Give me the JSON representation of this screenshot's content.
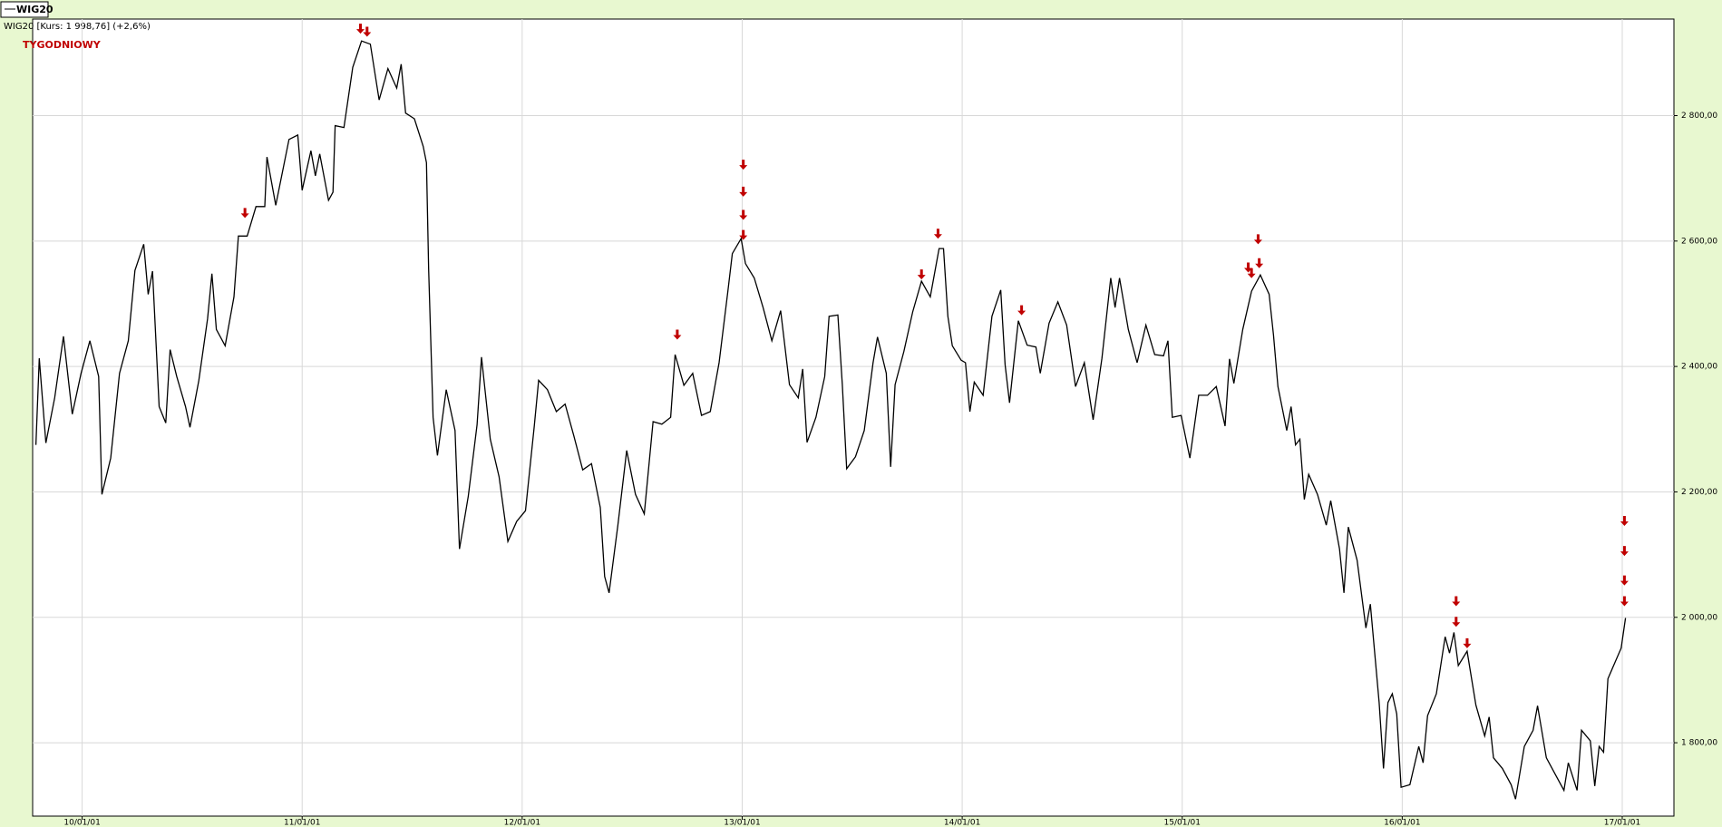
{
  "chart_data": {
    "type": "line",
    "legend_label": "WIG20",
    "subtitle": "WIG20 [Kurs: 1 998,76] (+2,6%)",
    "annotation": "TYGODNIOWY",
    "grid": true,
    "xlim": [
      2009.775,
      2017.235
    ],
    "ylim": [
      1683,
      2954
    ],
    "xticks": [
      {
        "value": 2010,
        "label": "10/01/01"
      },
      {
        "value": 2011,
        "label": "11/01/01"
      },
      {
        "value": 2012,
        "label": "12/01/01"
      },
      {
        "value": 2013,
        "label": "13/01/01"
      },
      {
        "value": 2014,
        "label": "14/01/01"
      },
      {
        "value": 2015,
        "label": "15/01/01"
      },
      {
        "value": 2016,
        "label": "16/01/01"
      },
      {
        "value": 2017,
        "label": "17/01/01"
      }
    ],
    "yticks": [
      {
        "value": 1800,
        "label": "1 800,00"
      },
      {
        "value": 2000,
        "label": "2 000,00"
      },
      {
        "value": 2200,
        "label": "2 200,00"
      },
      {
        "value": 2400,
        "label": "2 400,00"
      },
      {
        "value": 2600,
        "label": "2 600,00"
      },
      {
        "value": 2800,
        "label": "2 800,00"
      }
    ],
    "x": [
      2009.79,
      2009.805,
      2009.835,
      2009.875,
      2009.915,
      2009.955,
      2009.995,
      2010.035,
      2010.075,
      2010.09,
      2010.13,
      2010.17,
      2010.21,
      2010.24,
      2010.28,
      2010.3,
      2010.32,
      2010.35,
      2010.38,
      2010.4,
      2010.43,
      2010.47,
      2010.49,
      2010.53,
      2010.57,
      2010.59,
      2010.61,
      2010.65,
      2010.69,
      2010.71,
      2010.75,
      2010.79,
      2010.83,
      2010.84,
      2010.88,
      2010.94,
      2010.98,
      2011.0,
      2011.04,
      2011.06,
      2011.08,
      2011.12,
      2011.14,
      2011.15,
      2011.19,
      2011.23,
      2011.27,
      2011.31,
      2011.35,
      2011.39,
      2011.43,
      2011.45,
      2011.47,
      2011.51,
      2011.55,
      2011.565,
      2011.575,
      2011.595,
      2011.615,
      2011.655,
      2011.695,
      2011.715,
      2011.755,
      2011.795,
      2011.815,
      2011.855,
      2011.895,
      2011.935,
      2011.975,
      2012.015,
      2012.055,
      2012.075,
      2012.115,
      2012.155,
      2012.195,
      2012.235,
      2012.275,
      2012.315,
      2012.355,
      2012.375,
      2012.395,
      2012.435,
      2012.475,
      2012.515,
      2012.555,
      2012.595,
      2012.635,
      2012.675,
      2012.695,
      2012.735,
      2012.775,
      2012.815,
      2012.855,
      2012.895,
      2012.935,
      2012.955,
      2012.995,
      2013.015,
      2013.055,
      2013.095,
      2013.135,
      2013.175,
      2013.215,
      2013.255,
      2013.275,
      2013.295,
      2013.335,
      2013.375,
      2013.395,
      2013.435,
      2013.455,
      2013.475,
      2013.515,
      2013.555,
      2013.595,
      2013.615,
      2013.655,
      2013.675,
      2013.695,
      2013.735,
      2013.775,
      2013.815,
      2013.855,
      2013.895,
      2013.915,
      2013.935,
      2013.955,
      2013.995,
      2014.015,
      2014.035,
      2014.055,
      2014.095,
      2014.135,
      2014.175,
      2014.195,
      2014.215,
      2014.255,
      2014.295,
      2014.335,
      2014.355,
      2014.395,
      2014.435,
      2014.475,
      2014.515,
      2014.555,
      2014.595,
      2014.635,
      2014.675,
      2014.695,
      2014.715,
      2014.755,
      2014.795,
      2014.835,
      2014.875,
      2014.915,
      2014.935,
      2014.955,
      2014.995,
      2015.035,
      2015.075,
      2015.115,
      2015.155,
      2015.195,
      2015.215,
      2015.235,
      2015.275,
      2015.315,
      2015.355,
      2015.395,
      2015.415,
      2015.435,
      2015.475,
      2015.495,
      2015.515,
      2015.535,
      2015.555,
      2015.575,
      2015.615,
      2015.655,
      2015.675,
      2015.715,
      2015.735,
      2015.755,
      2015.795,
      2015.835,
      2015.855,
      2015.895,
      2015.915,
      2015.935,
      2015.955,
      2015.975,
      2015.995,
      2016.035,
      2016.075,
      2016.095,
      2016.115,
      2016.155,
      2016.195,
      2016.215,
      2016.235,
      2016.255,
      2016.295,
      2016.335,
      2016.375,
      2016.395,
      2016.415,
      2016.455,
      2016.495,
      2016.515,
      2016.555,
      2016.595,
      2016.615,
      2016.655,
      2016.695,
      2016.735,
      2016.755,
      2016.795,
      2016.815,
      2016.855,
      2016.875,
      2016.895,
      2016.915,
      2016.935,
      2016.995,
      2017.015
    ],
    "series": [
      {
        "name": "WIG20",
        "color": "#000000",
        "values": [
          2275,
          2413,
          2278,
          2350,
          2448,
          2324,
          2389,
          2441,
          2384,
          2196,
          2254,
          2389,
          2441,
          2553,
          2595,
          2515,
          2552,
          2336,
          2310,
          2427,
          2384,
          2336,
          2303,
          2377,
          2476,
          2548,
          2459,
          2433,
          2511,
          2608,
          2608,
          2655,
          2655,
          2734,
          2657,
          2762,
          2769,
          2681,
          2744,
          2704,
          2739,
          2665,
          2678,
          2784,
          2781,
          2877,
          2919,
          2914,
          2825,
          2875,
          2844,
          2882,
          2804,
          2795,
          2751,
          2725,
          2555,
          2319,
          2258,
          2363,
          2298,
          2109,
          2193,
          2307,
          2415,
          2284,
          2224,
          2121,
          2153,
          2170,
          2305,
          2378,
          2363,
          2328,
          2340,
          2289,
          2235,
          2245,
          2175,
          2065,
          2039,
          2147,
          2266,
          2196,
          2165,
          2312,
          2308,
          2319,
          2419,
          2370,
          2389,
          2322,
          2328,
          2406,
          2520,
          2580,
          2604,
          2564,
          2541,
          2494,
          2441,
          2489,
          2371,
          2350,
          2396,
          2279,
          2319,
          2384,
          2480,
          2482,
          2371,
          2237,
          2256,
          2298,
          2406,
          2447,
          2389,
          2240,
          2371,
          2424,
          2487,
          2536,
          2511,
          2588,
          2588,
          2480,
          2433,
          2410,
          2406,
          2328,
          2375,
          2354,
          2480,
          2522,
          2403,
          2342,
          2473,
          2434,
          2431,
          2389,
          2469,
          2503,
          2466,
          2368,
          2406,
          2315,
          2413,
          2541,
          2494,
          2541,
          2459,
          2406,
          2466,
          2419,
          2417,
          2441,
          2319,
          2322,
          2254,
          2354,
          2354,
          2368,
          2305,
          2412,
          2373,
          2459,
          2520,
          2546,
          2515,
          2450,
          2368,
          2298,
          2336,
          2275,
          2284,
          2188,
          2228,
          2196,
          2147,
          2186,
          2109,
          2039,
          2144,
          2091,
          1983,
          2021,
          1864,
          1759,
          1864,
          1878,
          1846,
          1729,
          1733,
          1794,
          1768,
          1843,
          1878,
          1969,
          1943,
          1976,
          1923,
          1946,
          1860,
          1811,
          1841,
          1776,
          1759,
          1733,
          1710,
          1794,
          1820,
          1859,
          1776,
          1750,
          1724,
          1768,
          1724,
          1820,
          1803,
          1731,
          1794,
          1785,
          1902,
          1951,
          1999
        ]
      }
    ],
    "markers": {
      "color": "#c00000",
      "x": [
        2011.265,
        2011.295,
        2010.74,
        2012.705,
        2013.005,
        2013.005,
        2013.005,
        2013.005,
        2013.815,
        2013.89,
        2014.27,
        2015.3,
        2015.315,
        2015.345,
        2015.35,
        2016.245,
        2016.245,
        2016.295,
        2017.01,
        2017.01,
        2017.01,
        2017.01
      ],
      "y": [
        2938,
        2933,
        2644,
        2450,
        2721,
        2678,
        2641,
        2609,
        2546,
        2611,
        2489,
        2557,
        2548,
        2602,
        2564,
        2025,
        1992,
        1958,
        2153,
        2105,
        2058,
        2025
      ]
    }
  }
}
